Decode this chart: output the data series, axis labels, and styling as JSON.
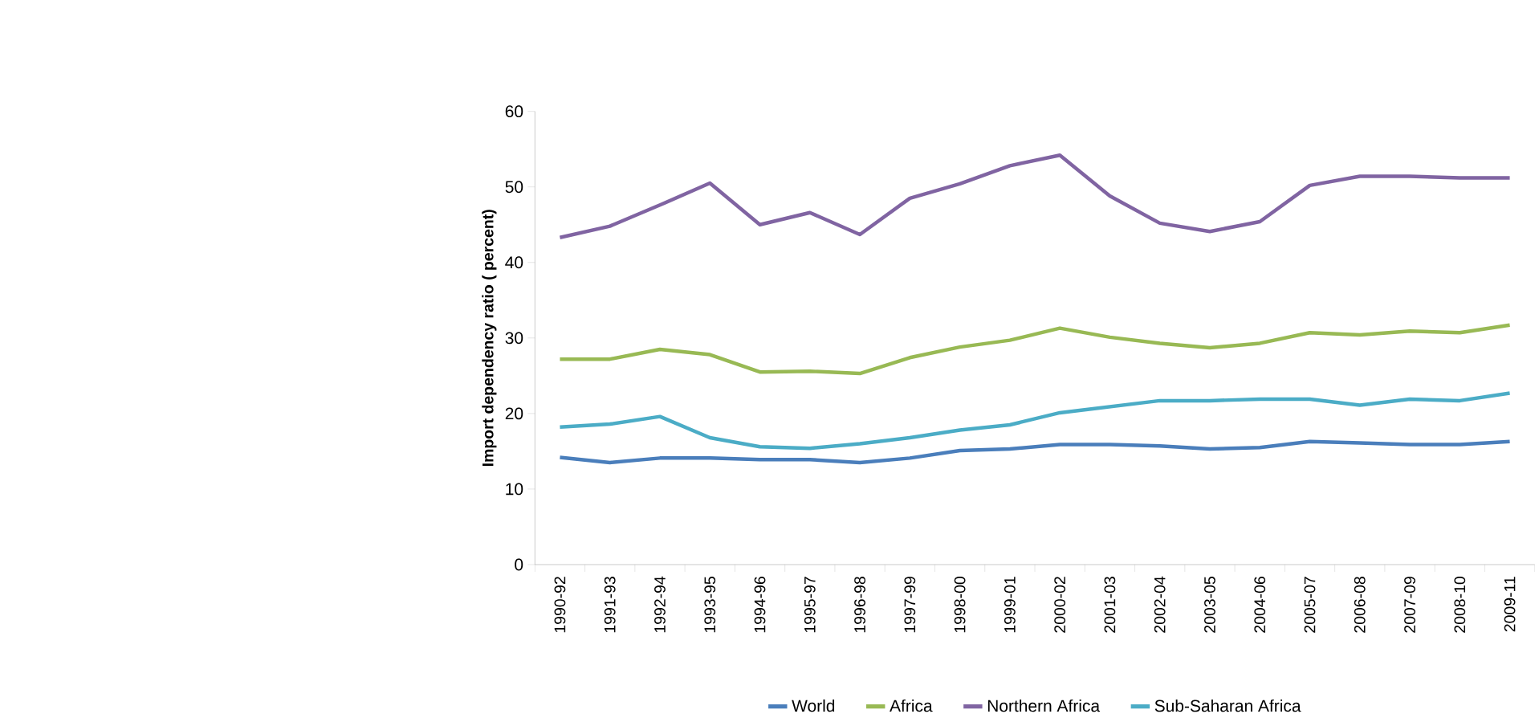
{
  "chart_data": {
    "type": "line",
    "ylabel": "Import dependency ratio ( percent)",
    "categories": [
      "1990-92",
      "1991-93",
      "1992-94",
      "1993-95",
      "1994-96",
      "1995-97",
      "1996-98",
      "1997-99",
      "1998-00",
      "1999-01",
      "2000-02",
      "2001-03",
      "2002-04",
      "2003-05",
      "2004-06",
      "2005-07",
      "2006-08",
      "2007-09",
      "2008-10",
      "2009-11"
    ],
    "series": [
      {
        "name": "World",
        "color": "#4a7ebb",
        "values": [
          14.2,
          13.5,
          14.1,
          14.1,
          13.9,
          13.9,
          13.5,
          14.1,
          15.1,
          15.3,
          15.9,
          15.9,
          15.7,
          15.3,
          15.5,
          16.3,
          16.1,
          15.9,
          15.9,
          16.3
        ]
      },
      {
        "name": "Africa",
        "color": "#98b954",
        "values": [
          27.2,
          27.2,
          28.5,
          27.8,
          25.5,
          25.6,
          25.3,
          27.4,
          28.8,
          29.7,
          31.3,
          30.1,
          29.3,
          28.7,
          29.3,
          30.7,
          30.4,
          30.9,
          30.7,
          31.7
        ]
      },
      {
        "name": "Northern Africa",
        "color": "#8064a2",
        "values": [
          43.3,
          44.8,
          47.6,
          50.5,
          45.0,
          46.6,
          43.7,
          48.5,
          50.4,
          52.8,
          54.2,
          48.8,
          45.2,
          44.1,
          45.4,
          50.2,
          51.4,
          51.4,
          51.2,
          51.2
        ]
      },
      {
        "name": "Sub-Saharan Africa",
        "color": "#4bacc6",
        "values": [
          18.2,
          18.6,
          19.6,
          16.8,
          15.6,
          15.4,
          16.0,
          16.8,
          17.8,
          18.5,
          20.1,
          20.9,
          21.7,
          21.7,
          21.9,
          21.9,
          21.1,
          21.9,
          21.7,
          22.7
        ]
      }
    ],
    "ylim": [
      0,
      60
    ],
    "yticks": [
      0,
      10,
      20,
      30,
      40,
      50,
      60
    ],
    "grid": false,
    "legend": "bottom",
    "marker": "none",
    "line_style": "solid"
  }
}
